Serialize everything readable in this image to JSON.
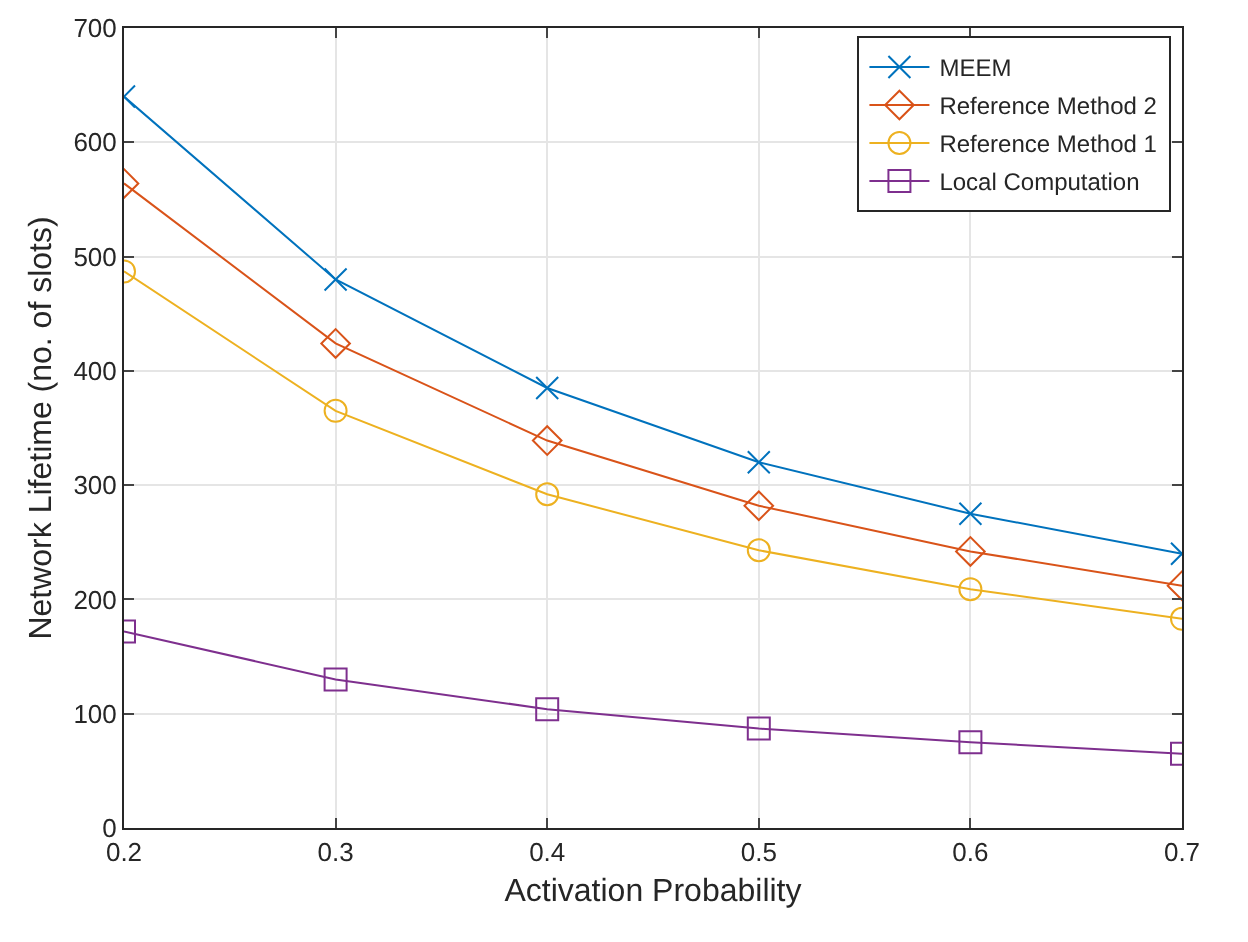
{
  "chart_data": {
    "type": "line",
    "xlabel": "Activation Probability",
    "ylabel": "Network Lifetime (no. of slots)",
    "x": [
      0.2,
      0.3,
      0.4,
      0.5,
      0.6,
      0.7
    ],
    "series": [
      {
        "name": "MEEM",
        "color": "#0072bd",
        "marker": "cross",
        "values": [
          640,
          480,
          385,
          320,
          275,
          240
        ]
      },
      {
        "name": "Reference Method 2",
        "color": "#d95319",
        "marker": "diamond",
        "values": [
          564,
          424,
          339,
          282,
          242,
          212
        ]
      },
      {
        "name": "Reference Method 1",
        "color": "#edb120",
        "marker": "circle",
        "values": [
          487,
          365,
          292,
          243,
          209,
          183
        ]
      },
      {
        "name": "Local Computation",
        "color": "#7e2f8e",
        "marker": "square",
        "values": [
          172,
          130,
          104,
          87,
          75,
          65
        ]
      }
    ],
    "xlim": [
      0.2,
      0.7
    ],
    "xticks": [
      0.2,
      0.3,
      0.4,
      0.5,
      0.6,
      0.7
    ],
    "ylim": [
      0,
      700
    ],
    "yticks": [
      0,
      100,
      200,
      300,
      400,
      500,
      600,
      700
    ],
    "grid": true,
    "legend": "top right",
    "line_style": "solid"
  }
}
